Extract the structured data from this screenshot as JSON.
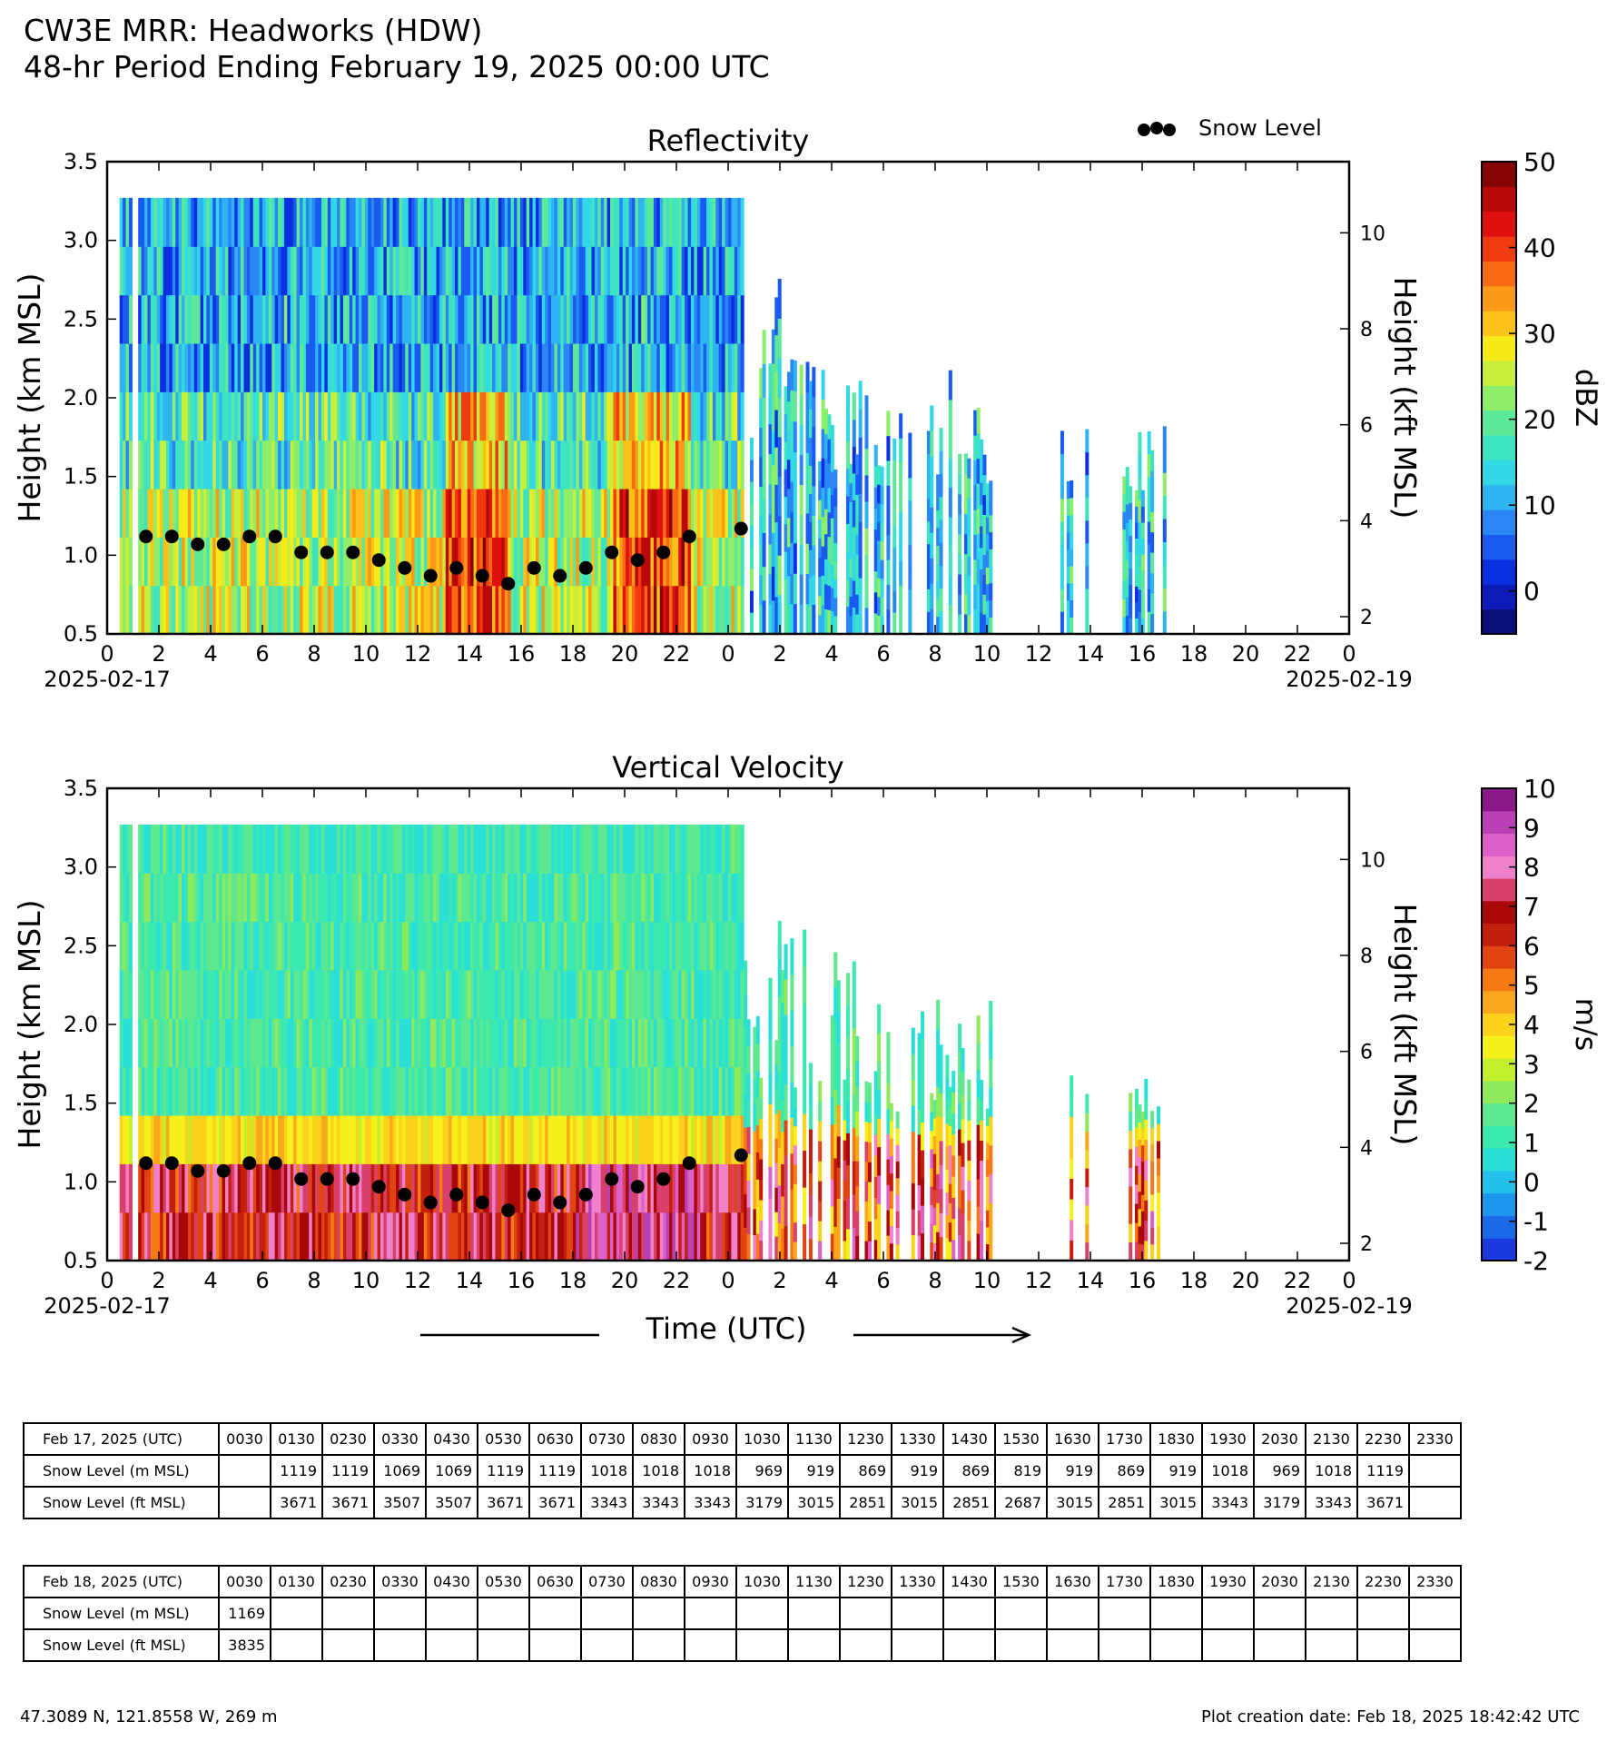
{
  "header": {
    "line1": "CW3E MRR: Headworks (HDW)",
    "line2": "48-hr Period Ending February 19, 2025 00:00 UTC"
  },
  "legend": {
    "label": "Snow Level"
  },
  "chart_data": [
    {
      "type": "heatmap",
      "title": "Reflectivity",
      "ylabel": "Height (km MSL)",
      "ylabel_right": "Height (kft MSL)",
      "xlabel": "Time (UTC)",
      "ylim": [
        0.5,
        3.5
      ],
      "yticks": [
        "0.5",
        "1.0",
        "1.5",
        "2.0",
        "2.5",
        "3.0",
        "3.5"
      ],
      "yticks_right": [
        "2",
        "4",
        "6",
        "8",
        "10"
      ],
      "xticks": [
        "0",
        "2",
        "4",
        "6",
        "8",
        "10",
        "12",
        "14",
        "16",
        "18",
        "20",
        "22",
        "0",
        "2",
        "4",
        "6",
        "8",
        "10",
        "12",
        "14",
        "16",
        "18",
        "20",
        "22",
        "0"
      ],
      "date_start": "2025-02-17",
      "date_end": "2025-02-19",
      "colorbar": {
        "label": "dBZ",
        "min": -5,
        "max": 50,
        "ticks": [
          "0",
          "10",
          "20",
          "30",
          "40",
          "50"
        ]
      },
      "data_extent_hours": [
        0,
        41
      ],
      "snow_level_series": {
        "name": "Snow Level",
        "hours": [
          1.5,
          2.5,
          3.5,
          4.5,
          5.5,
          6.5,
          7.5,
          8.5,
          9.5,
          10.5,
          11.5,
          12.5,
          13.5,
          14.5,
          15.5,
          16.5,
          17.5,
          18.5,
          19.5,
          20.5,
          21.5,
          22.5,
          24.5
        ],
        "km": [
          1.119,
          1.119,
          1.069,
          1.069,
          1.119,
          1.119,
          1.018,
          1.018,
          1.018,
          0.969,
          0.919,
          0.869,
          0.919,
          0.869,
          0.819,
          0.919,
          0.869,
          0.919,
          1.018,
          0.969,
          1.018,
          1.119,
          1.169
        ]
      },
      "colors": {
        "low": "#0a2fd8",
        "mid": "#38d8c8",
        "high": "#f0a020"
      }
    },
    {
      "type": "heatmap",
      "title": "Vertical Velocity",
      "ylabel": "Height (km MSL)",
      "ylabel_right": "Height (kft MSL)",
      "xlabel": "Time (UTC)",
      "ylim": [
        0.5,
        3.5
      ],
      "yticks": [
        "0.5",
        "1.0",
        "1.5",
        "2.0",
        "2.5",
        "3.0",
        "3.5"
      ],
      "yticks_right": [
        "2",
        "4",
        "6",
        "8",
        "10"
      ],
      "xticks": [
        "0",
        "2",
        "4",
        "6",
        "8",
        "10",
        "12",
        "14",
        "16",
        "18",
        "20",
        "22",
        "0",
        "2",
        "4",
        "6",
        "8",
        "10",
        "12",
        "14",
        "16",
        "18",
        "20",
        "22",
        "0"
      ],
      "date_start": "2025-02-17",
      "date_end": "2025-02-19",
      "colorbar": {
        "label": "m/s",
        "min": -2,
        "max": 10,
        "ticks": [
          "-2",
          "-1",
          "0",
          "1",
          "2",
          "3",
          "4",
          "5",
          "6",
          "7",
          "8",
          "9",
          "10"
        ]
      },
      "data_extent_hours": [
        0,
        41
      ],
      "snow_level_series": {
        "name": "Snow Level",
        "hours": [
          1.5,
          2.5,
          3.5,
          4.5,
          5.5,
          6.5,
          7.5,
          8.5,
          9.5,
          10.5,
          11.5,
          12.5,
          13.5,
          14.5,
          15.5,
          16.5,
          17.5,
          18.5,
          19.5,
          20.5,
          21.5,
          22.5,
          24.5
        ],
        "km": [
          1.119,
          1.119,
          1.069,
          1.069,
          1.119,
          1.119,
          1.018,
          1.018,
          1.018,
          0.969,
          0.919,
          0.869,
          0.919,
          0.869,
          0.819,
          0.919,
          0.869,
          0.919,
          1.018,
          0.969,
          1.018,
          1.119,
          1.169
        ]
      },
      "colors": {
        "low": "#3ae0b8",
        "mid": "#f7ee20",
        "high": "#c81e10"
      }
    }
  ],
  "time_axis_label": "Time (UTC)",
  "tables": [
    {
      "header": "Feb 17, 2025 (UTC)",
      "times": [
        "0030",
        "0130",
        "0230",
        "0330",
        "0430",
        "0530",
        "0630",
        "0730",
        "0830",
        "0930",
        "1030",
        "1130",
        "1230",
        "1330",
        "1430",
        "1530",
        "1630",
        "1730",
        "1830",
        "1930",
        "2030",
        "2130",
        "2230",
        "2330"
      ],
      "rows": [
        {
          "label": "Snow Level (m MSL)",
          "values": [
            "",
            "1119",
            "1119",
            "1069",
            "1069",
            "1119",
            "1119",
            "1018",
            "1018",
            "1018",
            "969",
            "919",
            "869",
            "919",
            "869",
            "819",
            "919",
            "869",
            "919",
            "1018",
            "969",
            "1018",
            "1119",
            ""
          ]
        },
        {
          "label": "Snow Level (ft MSL)",
          "values": [
            "",
            "3671",
            "3671",
            "3507",
            "3507",
            "3671",
            "3671",
            "3343",
            "3343",
            "3343",
            "3179",
            "3015",
            "2851",
            "3015",
            "2851",
            "2687",
            "3015",
            "2851",
            "3015",
            "3343",
            "3179",
            "3343",
            "3671",
            ""
          ]
        }
      ]
    },
    {
      "header": "Feb 18, 2025 (UTC)",
      "times": [
        "0030",
        "0130",
        "0230",
        "0330",
        "0430",
        "0530",
        "0630",
        "0730",
        "0830",
        "0930",
        "1030",
        "1130",
        "1230",
        "1330",
        "1430",
        "1530",
        "1630",
        "1730",
        "1830",
        "1930",
        "2030",
        "2130",
        "2230",
        "2330"
      ],
      "rows": [
        {
          "label": "Snow Level (m MSL)",
          "values": [
            "1169",
            "",
            "",
            "",
            "",
            "",
            "",
            "",
            "",
            "",
            "",
            "",
            "",
            "",
            "",
            "",
            "",
            "",
            "",
            "",
            "",
            "",
            "",
            ""
          ]
        },
        {
          "label": "Snow Level (ft MSL)",
          "values": [
            "3835",
            "",
            "",
            "",
            "",
            "",
            "",
            "",
            "",
            "",
            "",
            "",
            "",
            "",
            "",
            "",
            "",
            "",
            "",
            "",
            "",
            "",
            "",
            ""
          ]
        }
      ]
    }
  ],
  "footer": {
    "location": "47.3089 N, 121.8558 W, 269 m",
    "created": "Plot creation date: Feb 18, 2025 18:42:42 UTC"
  }
}
